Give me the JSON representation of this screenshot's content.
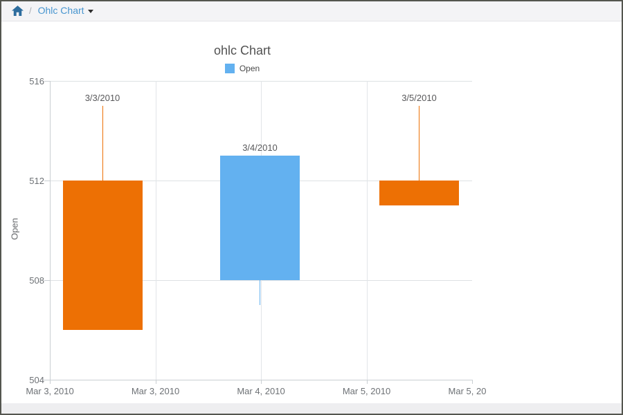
{
  "breadcrumb": {
    "separator": "/",
    "current": "Ohlc Chart",
    "home_icon": "home-icon",
    "home_color": "#2e6d9e",
    "link_color": "#4795cf"
  },
  "chart_data": {
    "type": "candlestick",
    "title": "ohlc Chart",
    "ylabel": "Open",
    "ylim": [
      504,
      516
    ],
    "y_ticks": [
      516,
      512,
      508,
      504
    ],
    "x_tick_labels": [
      "Mar 3, 2010",
      "Mar 3, 2010",
      "Mar 4, 2010",
      "Mar 5, 2010",
      "Mar 5, 20"
    ],
    "legend": [
      {
        "label": "Open",
        "color": "#63b1f0",
        "position": "top-center"
      }
    ],
    "grid": "on",
    "series": [
      {
        "date_label": "3/3/2010",
        "open": 512,
        "high": 515,
        "low": 506,
        "close": 506,
        "direction": "falling",
        "color": "#ed7004"
      },
      {
        "date_label": "3/4/2010",
        "open": 508,
        "high": 513,
        "low": 507,
        "close": 513,
        "direction": "rising",
        "color": "#63b1f0"
      },
      {
        "date_label": "3/5/2010",
        "open": 512,
        "high": 515,
        "low": 511,
        "close": 511,
        "direction": "falling",
        "color": "#ed7004"
      }
    ],
    "colors": {
      "rising": "#63b1f0",
      "falling": "#ed7004",
      "grid_h": "#dde1e4",
      "grid_v": "#e2e5e8",
      "axis": "#c9ced2",
      "tick_text": "#6d7175",
      "label_text": "#58585a"
    }
  }
}
